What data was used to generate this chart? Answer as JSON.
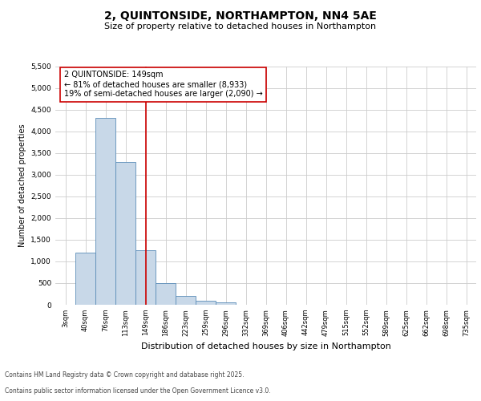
{
  "title_line1": "2, QUINTONSIDE, NORTHAMPTON, NN4 5AE",
  "title_line2": "Size of property relative to detached houses in Northampton",
  "xlabel": "Distribution of detached houses by size in Northampton",
  "ylabel": "Number of detached properties",
  "categories": [
    "3sqm",
    "40sqm",
    "76sqm",
    "113sqm",
    "149sqm",
    "186sqm",
    "223sqm",
    "259sqm",
    "296sqm",
    "332sqm",
    "369sqm",
    "406sqm",
    "442sqm",
    "479sqm",
    "515sqm",
    "552sqm",
    "589sqm",
    "625sqm",
    "662sqm",
    "698sqm",
    "735sqm"
  ],
  "values": [
    0,
    1200,
    4300,
    3300,
    1250,
    500,
    200,
    100,
    60,
    0,
    0,
    0,
    0,
    0,
    0,
    0,
    0,
    0,
    0,
    0,
    0
  ],
  "bar_color": "#c8d8e8",
  "bar_edge_color": "#5b8db8",
  "vline_x_index": 4,
  "vline_color": "#cc0000",
  "annotation_text": "2 QUINTONSIDE: 149sqm\n← 81% of detached houses are smaller (8,933)\n19% of semi-detached houses are larger (2,090) →",
  "annotation_box_color": "#ffffff",
  "annotation_box_edge_color": "#cc0000",
  "ylim": [
    0,
    5500
  ],
  "yticks": [
    0,
    500,
    1000,
    1500,
    2000,
    2500,
    3000,
    3500,
    4000,
    4500,
    5000,
    5500
  ],
  "footer_line1": "Contains HM Land Registry data © Crown copyright and database right 2025.",
  "footer_line2": "Contains public sector information licensed under the Open Government Licence v3.0.",
  "bg_color": "#ffffff",
  "grid_color": "#cccccc",
  "title_fontsize": 10,
  "subtitle_fontsize": 8,
  "xlabel_fontsize": 8,
  "ylabel_fontsize": 7,
  "tick_fontsize": 6,
  "annot_fontsize": 7,
  "footer_fontsize": 5.5
}
